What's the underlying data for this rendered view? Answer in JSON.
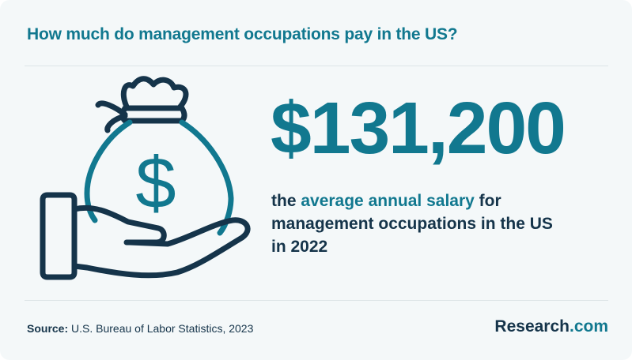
{
  "header": {
    "title": "How much do management occupations pay in the US?"
  },
  "stat": {
    "amount": "$131,200",
    "currency_symbol": "$",
    "description_before": "the ",
    "description_highlight": "average annual salary",
    "description_after": " for management occupations in the US in 2022"
  },
  "footer": {
    "source_label": "Source:",
    "source_text": " U.S. Bureau of Labor Statistics, 2023",
    "brand_name": "Research",
    "brand_suffix": ".com"
  },
  "colors": {
    "accent": "#11788f",
    "navy": "#15344a",
    "background": "#f4f8f9"
  },
  "icons": [
    "money-bag-icon",
    "hand-icon",
    "dollar-sign-icon"
  ]
}
